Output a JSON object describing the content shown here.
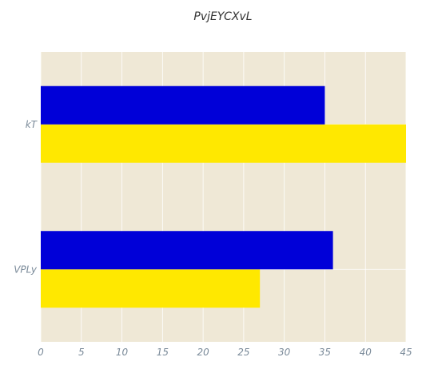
{
  "chart_data": {
    "type": "bar",
    "orientation": "horizontal",
    "title": "PvjEYCXvL",
    "xlabel": "",
    "ylabel": "",
    "categories": [
      "VPLy",
      "kT"
    ],
    "series": [
      {
        "color": "#ffe800",
        "values": [
          27,
          45
        ]
      },
      {
        "color": "#0000d8",
        "values": [
          36,
          35
        ]
      }
    ],
    "xlim": [
      0,
      45
    ],
    "xticks": [
      0,
      5,
      10,
      15,
      20,
      25,
      30,
      35,
      40,
      45
    ],
    "grid": true,
    "plot_background": "#efe8d6",
    "grid_color": "#ffffff"
  }
}
